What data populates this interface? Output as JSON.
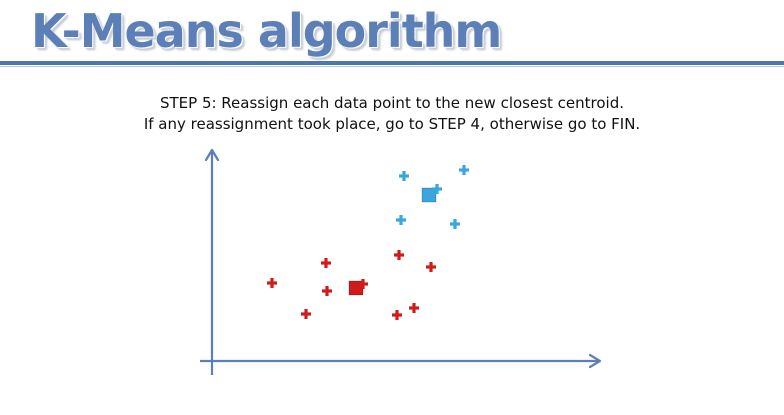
{
  "header": {
    "title": "K-Means algorithm"
  },
  "description": {
    "line1": "STEP 5: Reassign each data point to the new closest centroid.",
    "line2": "If any reassignment took place, go to STEP 4, otherwise go to FIN."
  },
  "chart_data": {
    "type": "scatter",
    "title": "",
    "xlabel": "",
    "ylabel": "",
    "grid": false,
    "colors": {
      "cluster_blue": "#3aa6e0",
      "cluster_red": "#d11a1a",
      "axis": "#5b7fb6"
    },
    "series": [
      {
        "marker": "cross",
        "color": "#3aa6e0",
        "points": [
          [
            404,
            176
          ],
          [
            464,
            170
          ],
          [
            437,
            189
          ],
          [
            401,
            220
          ],
          [
            455,
            224
          ]
        ]
      },
      {
        "marker": "cross",
        "color": "#d11a1a",
        "points": [
          [
            272,
            283
          ],
          [
            326,
            263
          ],
          [
            327,
            291
          ],
          [
            306,
            314
          ],
          [
            363,
            284
          ],
          [
            399,
            255
          ],
          [
            431,
            267
          ],
          [
            397,
            315
          ],
          [
            414,
            308
          ]
        ]
      }
    ],
    "centroids": [
      {
        "color": "#3aa6e0",
        "point": [
          429,
          195
        ]
      },
      {
        "color": "#d11a1a",
        "point": [
          356,
          288
        ]
      }
    ]
  }
}
